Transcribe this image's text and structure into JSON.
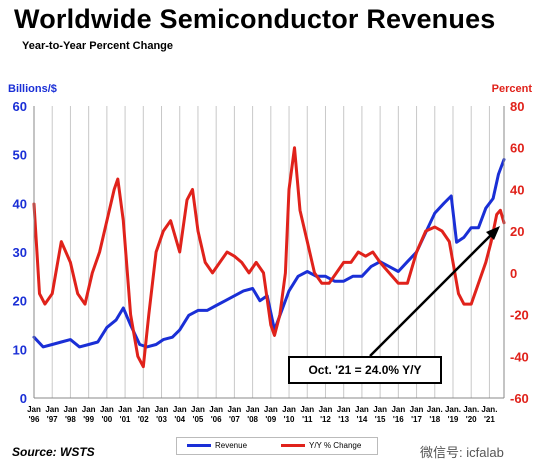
{
  "watermark": "微信号: icfalab",
  "chart_data": {
    "type": "line",
    "title": "Worldwide Semiconductor Revenues",
    "subtitle": "Year-to-Year Percent Change",
    "ylabel_left": "Billions/$",
    "ylabel_right": "Percent",
    "ylim_left": [
      0,
      60
    ],
    "yticks_left": [
      0,
      10,
      20,
      30,
      40,
      50,
      60
    ],
    "ylim_right": [
      -60,
      80
    ],
    "yticks_right": [
      -60,
      -40,
      -20,
      0,
      20,
      40,
      60,
      80
    ],
    "xlim": [
      1996.0,
      2021.8
    ],
    "x_tick_positions": [
      1996,
      1997,
      1998,
      1999,
      2000,
      2001,
      2002,
      2003,
      2004,
      2005,
      2006,
      2007,
      2008,
      2009,
      2010,
      2011,
      2012,
      2013,
      2014,
      2015,
      2016,
      2017,
      2018,
      2019,
      2020,
      2021
    ],
    "x_tick_line1": [
      "Jan",
      "Jan",
      "Jan",
      "Jan",
      "Jan",
      "Jan",
      "Jan",
      "Jan",
      "Jan",
      "Jan",
      "Jan",
      "Jan",
      "Jan",
      "Jan",
      "Jan",
      "Jan",
      "Jan",
      "Jan",
      "Jan",
      "Jan",
      "Jan",
      "Jan",
      "Jan.",
      "Jan.",
      "Jan.",
      "Jan."
    ],
    "x_tick_line2": [
      "'96",
      "'97",
      "'98",
      "'99",
      "'00",
      "'01",
      "'02",
      "'03",
      "'04",
      "'05",
      "'06",
      "'07",
      "'08",
      "'09",
      "'10",
      "'11",
      "'12",
      "'13",
      "'14",
      "'15",
      "'16",
      "'17",
      "'18",
      "'19",
      "'20",
      "'21"
    ],
    "grid": "vertical",
    "legend_position": "bottom",
    "source": "Source: WSTS",
    "annotation": "Oct. '21 = 24.0% Y/Y",
    "series": [
      {
        "name": "Revenue",
        "axis": "left",
        "color": "#1a2fd6",
        "x": [
          1996.0,
          1996.5,
          1997.0,
          1997.5,
          1998.0,
          1998.5,
          1999.0,
          1999.5,
          2000.0,
          2000.5,
          2000.9,
          2001.3,
          2001.8,
          2002.2,
          2002.7,
          2003.1,
          2003.6,
          2004.0,
          2004.5,
          2005.0,
          2005.5,
          2006.0,
          2006.5,
          2007.0,
          2007.5,
          2008.0,
          2008.4,
          2008.8,
          2009.2,
          2009.6,
          2010.0,
          2010.5,
          2011.0,
          2011.5,
          2012.0,
          2012.5,
          2013.0,
          2013.5,
          2014.0,
          2014.5,
          2015.0,
          2015.5,
          2016.0,
          2016.5,
          2017.0,
          2017.5,
          2018.0,
          2018.5,
          2018.9,
          2019.2,
          2019.6,
          2020.0,
          2020.4,
          2020.8,
          2021.2,
          2021.5,
          2021.8
        ],
        "y": [
          12.5,
          10.5,
          11,
          11.5,
          12,
          10.5,
          11,
          11.5,
          14.5,
          16,
          18.5,
          15,
          11,
          10.5,
          11,
          12,
          12.5,
          14,
          17,
          18,
          18,
          19,
          20,
          21,
          22,
          22.5,
          20,
          21,
          14,
          18,
          22,
          25,
          26,
          25,
          25,
          24,
          24,
          25,
          25,
          27,
          28,
          27,
          26,
          28,
          30,
          34,
          38,
          40,
          41.5,
          32,
          33,
          35,
          35,
          39,
          41,
          46,
          49
        ]
      },
      {
        "name": "Y/Y % Change",
        "axis": "right",
        "color": "#e0221b",
        "x": [
          1996.0,
          1996.3,
          1996.6,
          1997.0,
          1997.5,
          1998.0,
          1998.4,
          1998.8,
          1999.2,
          1999.6,
          2000.0,
          2000.4,
          2000.6,
          2000.9,
          2001.3,
          2001.7,
          2002.0,
          2002.3,
          2002.7,
          2003.1,
          2003.5,
          2004.0,
          2004.4,
          2004.7,
          2005.0,
          2005.4,
          2005.8,
          2006.2,
          2006.6,
          2007.0,
          2007.4,
          2007.8,
          2008.2,
          2008.6,
          2009.0,
          2009.2,
          2009.5,
          2009.8,
          2010.0,
          2010.3,
          2010.6,
          2011.0,
          2011.4,
          2011.8,
          2012.2,
          2012.6,
          2013.0,
          2013.4,
          2013.8,
          2014.2,
          2014.6,
          2015.0,
          2015.5,
          2016.0,
          2016.5,
          2017.0,
          2017.5,
          2018.0,
          2018.4,
          2018.8,
          2019.0,
          2019.3,
          2019.6,
          2020.0,
          2020.4,
          2020.8,
          2021.1,
          2021.4,
          2021.6,
          2021.8
        ],
        "y": [
          33,
          -10,
          -15,
          -10,
          15,
          5,
          -10,
          -15,
          0,
          10,
          25,
          40,
          45,
          25,
          -20,
          -40,
          -45,
          -20,
          10,
          20,
          25,
          10,
          35,
          40,
          20,
          5,
          0,
          5,
          10,
          8,
          5,
          0,
          5,
          0,
          -25,
          -30,
          -20,
          0,
          40,
          60,
          30,
          15,
          0,
          -5,
          -5,
          0,
          5,
          5,
          10,
          8,
          10,
          5,
          0,
          -5,
          -5,
          10,
          20,
          22,
          20,
          15,
          5,
          -10,
          -15,
          -15,
          -5,
          5,
          15,
          28,
          30,
          24
        ]
      }
    ]
  }
}
